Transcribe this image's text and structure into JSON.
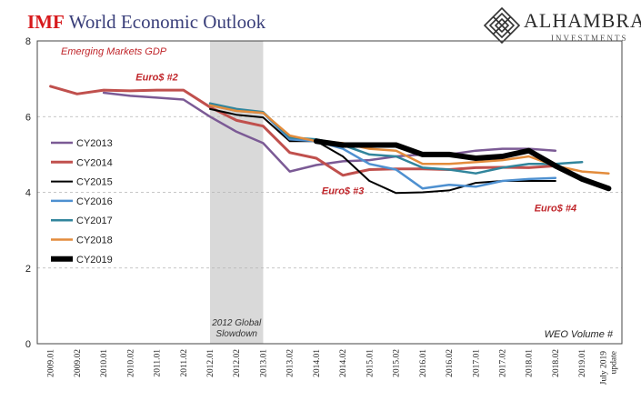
{
  "header": {
    "title_brand": "IMF",
    "title_rest": "World Economic Outlook"
  },
  "logo": {
    "name": "ALHAMBRA",
    "sub": "INVESTMENTS"
  },
  "chart_data": {
    "type": "line",
    "subtitle": "Emerging Markets GDP",
    "xlabel": "WEO Volume #",
    "ylabel": "",
    "ylim": [
      0,
      8
    ],
    "yticks": [
      0,
      2,
      4,
      6,
      8
    ],
    "grid": "horizontal dashed",
    "legend_position": "left",
    "categories": [
      "2009.01",
      "2009.02",
      "2010.01",
      "2010.02",
      "2011.01",
      "2011.02",
      "2012.01",
      "2012.02",
      "2013.01",
      "2013.02",
      "2014.01",
      "2014.02",
      "2015.01",
      "2015.02",
      "2016.01",
      "2016.02",
      "2017.01",
      "2017.02",
      "2018.01",
      "2018.02",
      "2019.01",
      "July 2019 update"
    ],
    "shaded_region": {
      "from": "2012.01",
      "to": "2013.01",
      "label": "2012 Global Slowdown",
      "color": "#d9d9d9"
    },
    "annotations": [
      {
        "text": "Euro$ #2",
        "x": "2011.01",
        "y": 6.95
      },
      {
        "text": "Euro$ #3",
        "x": "2014.02",
        "y": 3.95
      },
      {
        "text": "Euro$ #4",
        "x": "2018.02",
        "y": 3.5
      }
    ],
    "annotation_color": "#c0262b",
    "series": [
      {
        "name": "CY2013",
        "color": "#7b5a95",
        "width": 2.5,
        "values": [
          null,
          null,
          6.63,
          6.55,
          6.5,
          6.45,
          6.0,
          5.6,
          5.3,
          4.55,
          4.72,
          4.82,
          4.85,
          4.95,
          5.0,
          5.0,
          5.1,
          5.15,
          5.15,
          5.1,
          null,
          null
        ]
      },
      {
        "name": "CY2014",
        "color": "#c0504d",
        "width": 3,
        "values": [
          6.8,
          6.6,
          6.7,
          6.68,
          6.7,
          6.7,
          6.25,
          5.9,
          5.75,
          5.05,
          4.9,
          4.45,
          4.6,
          4.62,
          4.62,
          4.6,
          4.65,
          4.66,
          4.65,
          4.7,
          null,
          null
        ]
      },
      {
        "name": "CY2015",
        "color": "#000000",
        "width": 2,
        "values": [
          null,
          null,
          null,
          null,
          null,
          null,
          6.2,
          6.05,
          5.98,
          5.35,
          5.35,
          4.95,
          4.3,
          3.98,
          4.0,
          4.05,
          4.25,
          4.3,
          4.3,
          4.3,
          null,
          null
        ]
      },
      {
        "name": "CY2016",
        "color": "#4e90d0",
        "width": 2.5,
        "values": [
          null,
          null,
          null,
          null,
          null,
          null,
          6.3,
          6.15,
          6.1,
          5.4,
          5.35,
          5.15,
          4.75,
          4.6,
          4.1,
          4.2,
          4.15,
          4.3,
          4.35,
          4.38,
          null,
          null
        ]
      },
      {
        "name": "CY2017",
        "color": "#31859c",
        "width": 2.5,
        "values": [
          null,
          null,
          null,
          null,
          null,
          null,
          6.35,
          6.2,
          6.12,
          5.45,
          5.4,
          5.25,
          5.0,
          4.95,
          4.65,
          4.6,
          4.5,
          4.65,
          4.75,
          4.75,
          4.8,
          null
        ]
      },
      {
        "name": "CY2018",
        "color": "#e38c3c",
        "width": 2.5,
        "values": [
          null,
          null,
          null,
          null,
          null,
          null,
          6.3,
          6.15,
          6.1,
          5.5,
          5.35,
          5.3,
          5.15,
          5.1,
          4.75,
          4.75,
          4.8,
          4.85,
          4.95,
          4.7,
          4.55,
          4.5
        ]
      },
      {
        "name": "CY2019",
        "color": "#000000",
        "width": 6,
        "values": [
          null,
          null,
          null,
          null,
          null,
          null,
          null,
          null,
          null,
          null,
          5.35,
          5.25,
          5.25,
          5.25,
          5.0,
          5.0,
          4.9,
          4.95,
          5.1,
          4.7,
          4.35,
          4.1
        ]
      }
    ]
  }
}
